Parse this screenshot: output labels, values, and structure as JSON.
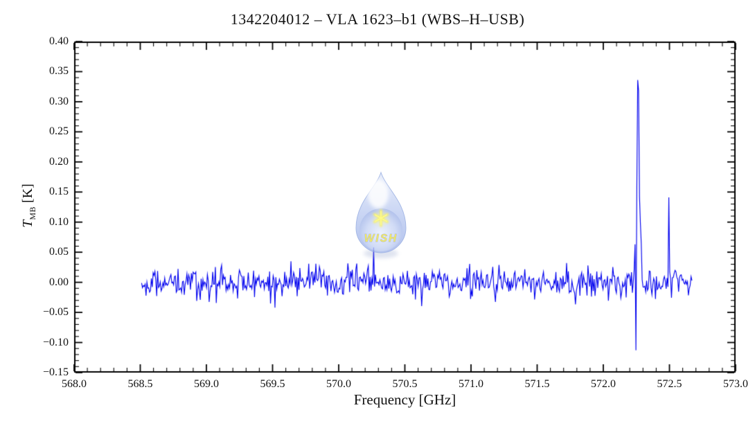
{
  "chart_data": {
    "type": "line",
    "title": "1342204012 – VLA 1623–b1 (WBS–H–USB)",
    "xlabel": "Frequency [GHz]",
    "ylabel": {
      "symbol": "T",
      "subscript": "MB",
      "unit": " [K]"
    },
    "xlim": [
      568.0,
      573.0
    ],
    "ylim": [
      -0.15,
      0.4
    ],
    "grid": false,
    "frame_color": "#000000",
    "x_tick_labels": [
      "568.0",
      "568.5",
      "569.0",
      "569.5",
      "570.0",
      "570.5",
      "571.0",
      "571.5",
      "572.0",
      "572.5",
      "573.0"
    ],
    "y_tick_labels": [
      "−0.15",
      "−0.10",
      "−0.05",
      "0.00",
      "0.05",
      "0.10",
      "0.15",
      "0.20",
      "0.25",
      "0.30",
      "0.35",
      "0.40"
    ],
    "x_major_step_ghz": 0.5,
    "x_minor_step_ghz": 0.1,
    "y_major_step_k": 0.05,
    "y_minor_step_k": 0.01,
    "series": [
      {
        "name": "WBS-H-USB spectrum",
        "color": "#0000ee",
        "x_start_ghz": 568.51,
        "x_end_ghz": 572.67,
        "n_channels": 620,
        "baseline_k": 0.0,
        "noise_rms_k": 0.0125,
        "noise_seed": 1342,
        "broad_lines": [
          {
            "label": "emission pedestal at 572.26 GHz",
            "center_ghz": 572.262,
            "peak_k": 0.168,
            "fwhm_ghz": 0.035
          }
        ],
        "spikes": [
          {
            "label": "narrow emission peak ~0.335 K",
            "center_ghz": 572.262,
            "channel_offset": 0,
            "value_k": 0.336
          },
          {
            "label": "peak shoulder",
            "center_ghz": 572.262,
            "channel_offset": 1,
            "value_k": 0.318
          },
          {
            "label": "negative spur ~ −0.11 K",
            "center_ghz": 572.262,
            "channel_offset": -2,
            "value_k": -0.113
          },
          {
            "label": "narrow line at 572.50 GHz",
            "center_ghz": 572.497,
            "channel_offset": 0,
            "value_k": 0.141
          },
          {
            "label": "small noise spike",
            "center_ghz": 570.262,
            "channel_offset": 0,
            "value_k": 0.058
          }
        ]
      }
    ],
    "watermark": {
      "text": "WISH",
      "symbol": "six-ray-star",
      "drop_color_top": "#dbe4f8",
      "drop_color_bottom": "#9db1e8",
      "star_color": "#f6ef3d",
      "text_color": "#ece23f"
    }
  }
}
